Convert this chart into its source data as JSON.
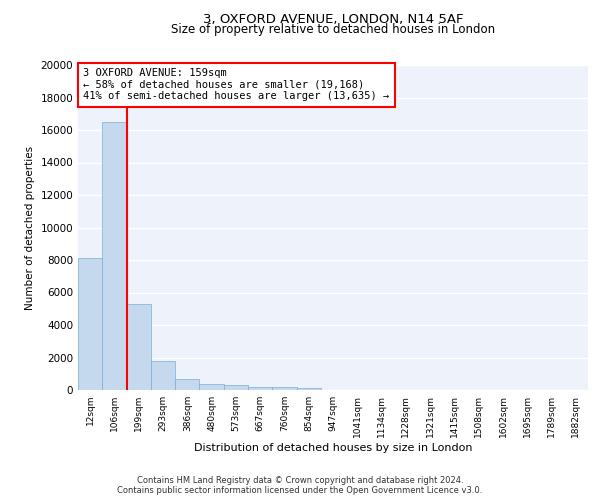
{
  "title": "3, OXFORD AVENUE, LONDON, N14 5AF",
  "subtitle": "Size of property relative to detached houses in London",
  "xlabel": "Distribution of detached houses by size in London",
  "ylabel": "Number of detached properties",
  "bar_color": "#c5d9ee",
  "bar_edge_color": "#7aafd4",
  "background_color": "#edf2fb",
  "grid_color": "#ffffff",
  "categories": [
    "12sqm",
    "106sqm",
    "199sqm",
    "293sqm",
    "386sqm",
    "480sqm",
    "573sqm",
    "667sqm",
    "760sqm",
    "854sqm",
    "947sqm",
    "1041sqm",
    "1134sqm",
    "1228sqm",
    "1321sqm",
    "1415sqm",
    "1508sqm",
    "1602sqm",
    "1695sqm",
    "1789sqm",
    "1882sqm"
  ],
  "values": [
    8100,
    16500,
    5300,
    1800,
    650,
    350,
    280,
    200,
    170,
    120,
    0,
    0,
    0,
    0,
    0,
    0,
    0,
    0,
    0,
    0,
    0
  ],
  "ylim": [
    0,
    20000
  ],
  "yticks": [
    0,
    2000,
    4000,
    6000,
    8000,
    10000,
    12000,
    14000,
    16000,
    18000,
    20000
  ],
  "red_line_x": 1.5,
  "annotation_text": "3 OXFORD AVENUE: 159sqm\n← 58% of detached houses are smaller (19,168)\n41% of semi-detached houses are larger (13,635) →",
  "footer_line1": "Contains HM Land Registry data © Crown copyright and database right 2024.",
  "footer_line2": "Contains public sector information licensed under the Open Government Licence v3.0."
}
